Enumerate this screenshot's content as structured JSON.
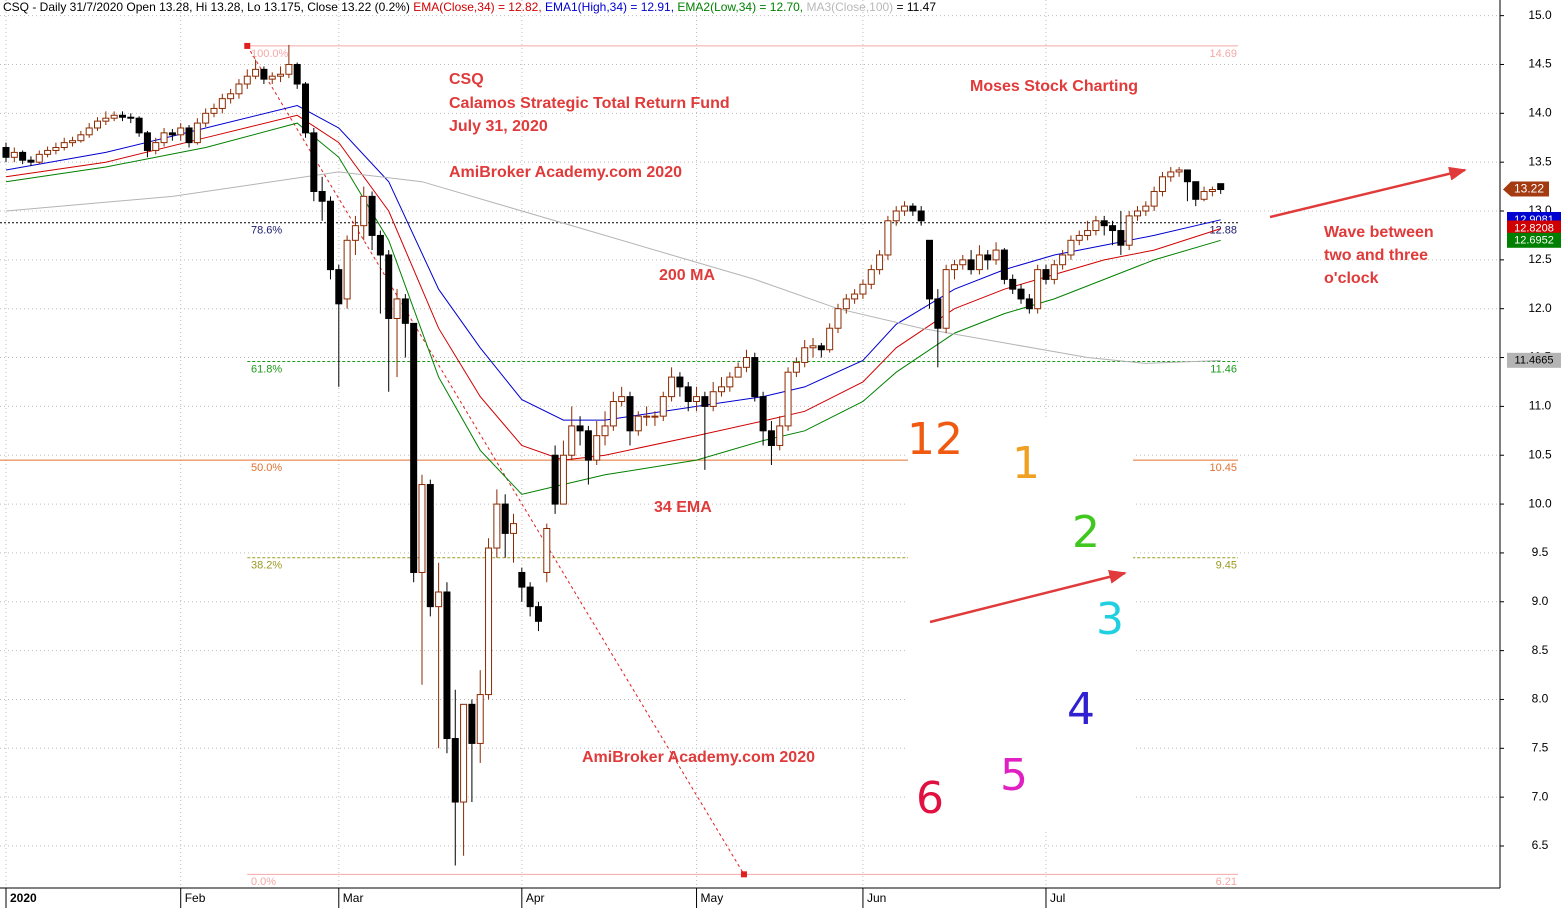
{
  "chart_data": {
    "type": "candlestick",
    "header": [
      {
        "text": "CSQ - Daily 31/7/2020 Open 13.28, Hi 13.28, Lo 13.175, Close 13.22 (0.2%) ",
        "color": "#000000"
      },
      {
        "text": "EMA(Close,34) = 12.82, ",
        "color": "#d00000"
      },
      {
        "text": "EMA1(High,34) = 12.91, ",
        "color": "#0000d0"
      },
      {
        "text": "EMA2(Low,34) = 12.70, ",
        "color": "#008000"
      },
      {
        "text": "MA3(Close,100)",
        "color": "#b8b8b8"
      },
      {
        "text": " = 11.47",
        "color": "#000000"
      }
    ],
    "open": [
      13.65,
      13.55,
      13.6,
      13.52,
      13.5,
      13.58,
      13.62,
      13.65,
      13.7,
      13.72,
      13.78,
      13.85,
      13.92,
      13.95,
      13.98,
      13.96,
      13.95,
      13.8,
      13.62,
      13.7,
      13.8,
      13.78,
      13.85,
      13.7,
      13.9,
      14.0,
      14.05,
      14.15,
      14.2,
      14.3,
      14.38,
      14.45,
      14.35,
      14.38,
      14.4,
      14.5,
      14.3,
      13.8,
      13.2,
      13.1,
      12.4,
      12.1,
      12.7,
      12.85,
      13.15,
      12.75,
      12.55,
      11.9,
      12.1,
      11.85,
      9.3,
      10.2,
      8.95,
      9.1,
      7.6,
      6.95,
      7.95,
      7.55,
      8.05,
      9.55,
      10.0,
      9.7,
      9.3,
      9.15,
      8.95,
      9.3,
      10.5,
      10.0,
      10.5,
      10.8,
      10.75,
      10.45,
      10.7,
      10.8,
      11.05,
      11.1,
      10.75,
      10.9,
      10.9,
      10.9,
      11.1,
      11.3,
      11.2,
      11.05,
      11.1,
      11.0,
      11.15,
      11.2,
      11.3,
      11.4,
      11.5,
      11.1,
      10.75,
      10.6,
      10.8,
      11.35,
      11.45,
      11.6,
      11.62,
      11.58,
      11.8,
      12.0,
      12.1,
      12.15,
      12.25,
      12.4,
      12.55,
      12.9,
      13.0,
      13.05,
      13.0,
      12.7,
      12.1,
      11.8,
      12.4,
      12.45,
      12.5,
      12.4,
      12.55,
      12.5,
      12.6,
      12.3,
      12.2,
      12.1,
      12.0,
      12.4,
      12.3,
      12.45,
      12.55,
      12.7,
      12.75,
      12.8,
      12.9,
      12.85,
      12.8,
      12.65,
      12.95,
      13.0,
      13.05,
      13.2,
      13.35,
      13.4,
      13.42,
      13.3,
      13.12,
      13.2,
      13.28
    ],
    "high": [
      13.7,
      13.65,
      13.62,
      13.56,
      13.62,
      13.66,
      13.7,
      13.75,
      13.76,
      13.82,
      13.9,
      13.96,
      14.02,
      14.02,
      14.02,
      14.0,
      13.97,
      13.82,
      13.75,
      13.85,
      13.84,
      13.9,
      13.88,
      13.95,
      14.05,
      14.1,
      14.2,
      14.25,
      14.35,
      14.45,
      14.55,
      14.48,
      14.42,
      14.48,
      14.7,
      14.52,
      14.32,
      13.85,
      13.35,
      13.15,
      12.45,
      12.75,
      12.95,
      13.25,
      13.2,
      12.8,
      12.6,
      12.2,
      12.15,
      11.85,
      10.3,
      10.25,
      9.4,
      9.2,
      8.1,
      7.95,
      8.0,
      8.3,
      9.65,
      10.15,
      10.1,
      9.9,
      9.35,
      9.2,
      9.0,
      9.8,
      10.6,
      10.65,
      11.0,
      10.9,
      10.8,
      10.85,
      10.95,
      11.15,
      11.2,
      11.15,
      10.95,
      11.0,
      10.95,
      11.15,
      11.4,
      11.35,
      11.25,
      11.2,
      11.15,
      11.25,
      11.3,
      11.35,
      11.45,
      11.58,
      11.55,
      11.15,
      10.85,
      10.9,
      11.4,
      11.5,
      11.68,
      11.7,
      11.65,
      11.85,
      12.05,
      12.15,
      12.2,
      12.3,
      12.45,
      12.6,
      12.95,
      13.05,
      13.1,
      13.08,
      13.05,
      12.7,
      12.2,
      12.45,
      12.5,
      12.55,
      12.6,
      12.65,
      12.6,
      12.68,
      12.62,
      12.35,
      12.25,
      12.15,
      12.45,
      12.45,
      12.5,
      12.6,
      12.75,
      12.8,
      12.9,
      12.95,
      12.95,
      12.9,
      13.0,
      13.0,
      13.05,
      13.1,
      13.25,
      13.4,
      13.45,
      13.45,
      13.42,
      13.3,
      13.25,
      13.25,
      13.28
    ],
    "low": [
      13.5,
      13.5,
      13.48,
      13.46,
      13.48,
      13.55,
      13.58,
      13.62,
      13.66,
      13.7,
      13.75,
      13.82,
      13.88,
      13.92,
      13.92,
      13.9,
      13.76,
      13.55,
      13.58,
      13.66,
      13.72,
      13.72,
      13.65,
      13.68,
      13.86,
      13.96,
      14.0,
      14.1,
      14.15,
      14.25,
      14.35,
      14.3,
      14.3,
      14.32,
      14.36,
      14.25,
      13.75,
      13.1,
      12.9,
      12.3,
      11.2,
      12.0,
      12.55,
      12.7,
      12.6,
      11.95,
      11.15,
      11.3,
      11.5,
      9.2,
      8.15,
      8.85,
      7.5,
      7.45,
      6.3,
      6.4,
      6.95,
      7.35,
      8.0,
      9.45,
      9.45,
      9.4,
      9.0,
      8.85,
      8.7,
      9.2,
      9.9,
      10.0,
      10.45,
      10.6,
      10.2,
      10.4,
      10.6,
      10.75,
      11.0,
      10.6,
      10.7,
      10.8,
      10.8,
      10.85,
      11.05,
      11.1,
      10.95,
      10.95,
      10.35,
      10.95,
      11.1,
      11.15,
      11.3,
      11.35,
      11.05,
      10.6,
      10.4,
      10.55,
      10.75,
      11.3,
      11.4,
      11.5,
      11.5,
      11.55,
      11.75,
      11.95,
      12.05,
      12.1,
      12.2,
      12.35,
      12.5,
      12.85,
      12.95,
      12.95,
      12.85,
      12.0,
      11.4,
      11.75,
      12.3,
      12.4,
      12.35,
      12.35,
      12.4,
      12.45,
      12.25,
      12.15,
      12.05,
      11.95,
      11.95,
      12.25,
      12.25,
      12.4,
      12.5,
      12.65,
      12.7,
      12.75,
      12.75,
      12.65,
      12.55,
      12.6,
      12.9,
      12.95,
      13.0,
      13.15,
      13.3,
      13.35,
      13.1,
      13.05,
      13.1,
      13.15,
      13.175
    ],
    "close": [
      13.55,
      13.6,
      13.52,
      13.5,
      13.58,
      13.62,
      13.65,
      13.7,
      13.72,
      13.78,
      13.85,
      13.92,
      13.95,
      13.98,
      13.96,
      13.95,
      13.8,
      13.62,
      13.7,
      13.8,
      13.78,
      13.85,
      13.7,
      13.9,
      14.0,
      14.05,
      14.15,
      14.2,
      14.3,
      14.38,
      14.45,
      14.35,
      14.38,
      14.4,
      14.5,
      14.3,
      13.8,
      13.2,
      13.1,
      12.4,
      12.05,
      12.7,
      12.85,
      13.15,
      12.75,
      12.55,
      11.9,
      12.1,
      11.85,
      9.3,
      10.2,
      8.95,
      9.1,
      7.6,
      6.95,
      7.95,
      7.55,
      8.05,
      9.55,
      10.0,
      9.7,
      9.8,
      9.15,
      8.95,
      8.8,
      9.75,
      10.0,
      10.5,
      10.8,
      10.75,
      10.45,
      10.7,
      10.8,
      11.05,
      11.1,
      10.75,
      10.9,
      10.9,
      10.9,
      11.1,
      11.3,
      11.2,
      11.05,
      11.1,
      11.0,
      11.15,
      11.2,
      11.3,
      11.4,
      11.5,
      11.1,
      10.75,
      10.6,
      10.8,
      11.35,
      11.45,
      11.6,
      11.62,
      11.58,
      11.8,
      12.0,
      12.1,
      12.15,
      12.25,
      12.4,
      12.55,
      12.9,
      13.0,
      13.05,
      13.0,
      12.9,
      12.1,
      11.8,
      12.4,
      12.45,
      12.5,
      12.4,
      12.55,
      12.5,
      12.6,
      12.3,
      12.2,
      12.1,
      12.0,
      12.4,
      12.3,
      12.45,
      12.55,
      12.7,
      12.75,
      12.8,
      12.9,
      12.85,
      12.8,
      12.65,
      12.95,
      13.0,
      13.05,
      13.2,
      13.35,
      13.4,
      13.42,
      13.3,
      13.12,
      13.2,
      13.22,
      13.22
    ],
    "up_color": "#8b2a00",
    "down_color": "#000000",
    "last_color": "#a33a10",
    "lines": [
      {
        "color": "#0000d0",
        "x": [
          0,
          12,
          24,
          35,
          40,
          46,
          52,
          57,
          62,
          67,
          72,
          83,
          91,
          96,
          103,
          107,
          114,
          120,
          126,
          132,
          138,
          146
        ],
        "values": [
          13.42,
          13.6,
          13.85,
          14.08,
          13.85,
          13.3,
          12.2,
          11.6,
          11.07,
          10.86,
          10.86,
          11.0,
          11.1,
          11.2,
          11.47,
          11.84,
          12.2,
          12.4,
          12.55,
          12.65,
          12.75,
          12.91
        ],
        "last_value": 12.9081
      },
      {
        "color": "#d00000",
        "x": [
          0,
          12,
          24,
          35,
          40,
          46,
          52,
          57,
          62,
          67,
          72,
          83,
          91,
          96,
          103,
          107,
          114,
          120,
          126,
          132,
          138,
          146
        ],
        "values": [
          13.35,
          13.5,
          13.75,
          13.98,
          13.7,
          13.0,
          11.8,
          11.1,
          10.6,
          10.45,
          10.5,
          10.7,
          10.85,
          10.95,
          11.25,
          11.6,
          12.0,
          12.2,
          12.35,
          12.5,
          12.6,
          12.82
        ],
        "last_value": 12.8208
      },
      {
        "color": "#008000",
        "x": [
          0,
          12,
          24,
          35,
          40,
          46,
          52,
          57,
          62,
          67,
          72,
          83,
          91,
          96,
          103,
          107,
          114,
          120,
          126,
          132,
          138,
          146
        ],
        "values": [
          13.3,
          13.45,
          13.65,
          13.9,
          13.55,
          12.7,
          11.3,
          10.55,
          10.1,
          10.2,
          10.3,
          10.45,
          10.65,
          10.75,
          11.05,
          11.35,
          11.75,
          11.95,
          12.1,
          12.3,
          12.5,
          12.7
        ],
        "last_value": 12.6952
      },
      {
        "color": "#b4b4b4",
        "x": [
          0,
          20,
          40,
          50,
          60,
          70,
          80,
          90,
          100,
          110,
          120,
          130,
          137,
          146
        ],
        "values": [
          13.0,
          13.15,
          13.4,
          13.3,
          13.05,
          12.8,
          12.55,
          12.3,
          12.0,
          11.8,
          11.65,
          11.5,
          11.44,
          11.47
        ],
        "last_value": 11.4665
      }
    ],
    "fib": [
      {
        "label": "100.0%",
        "value": 14.69,
        "color": "#f4a8a8"
      },
      {
        "label": "78.6%",
        "value": 12.88,
        "color": "#1a1a6e"
      },
      {
        "label": "61.8%",
        "value": 11.46,
        "color": "#1a9a1a"
      },
      {
        "label": "50.0%",
        "value": 10.45,
        "color": "#e07030"
      },
      {
        "label": "38.2%",
        "value": 9.45,
        "color": "#9a9a20"
      },
      {
        "label": "0.0%",
        "value": 6.21,
        "color": "#f4a8a8"
      }
    ],
    "trendline": {
      "x": [
        29,
        88.7
      ],
      "values": [
        14.69,
        6.21
      ],
      "color": "#e02020"
    },
    "xlim": [
      -0.72,
      179.57
    ],
    "ylim": [
      6.07,
      15.16
    ],
    "xticks": [
      {
        "value": 0,
        "label": "2020"
      },
      {
        "value": 21,
        "label": "Feb"
      },
      {
        "value": 40,
        "label": "Mar"
      },
      {
        "value": 62,
        "label": "Apr"
      },
      {
        "value": 83,
        "label": "May"
      },
      {
        "value": 103,
        "label": "Jun"
      },
      {
        "value": 125,
        "label": "Jul"
      }
    ],
    "yticks": [
      {
        "value": 15,
        "label": "15.0"
      },
      14.5,
      {
        "value": 14,
        "label": "14.0"
      },
      13.5,
      {
        "value": 13,
        "label": "13.0"
      },
      12.5,
      {
        "value": 12,
        "label": "12.0"
      },
      11.5,
      {
        "value": 11,
        "label": "11.0"
      },
      10.5,
      {
        "value": 10,
        "label": "10.0"
      },
      9.5,
      {
        "value": 9,
        "label": "9.0"
      },
      8.5,
      {
        "value": 8,
        "label": "8.0"
      },
      7.5,
      {
        "value": 7,
        "label": "7.0"
      },
      6.5
    ],
    "grid": true,
    "annotations": [
      "CSQ",
      "Calamos Strategic Total Return Fund",
      "July 31, 2020",
      "AmiBroker Academy.com  2020",
      "Moses Stock Charting",
      "200 MA",
      "34 EMA",
      "AmiBroker Academy.com  2020",
      "Wave between",
      "two and three",
      "o'clock"
    ],
    "clock": [
      {
        "text": "12",
        "color": "#f05a10"
      },
      {
        "text": "1",
        "color": "#f0a020"
      },
      {
        "text": "2",
        "color": "#40c820"
      },
      {
        "text": "3",
        "color": "#20d0e0"
      },
      {
        "text": "4",
        "color": "#3020d0"
      },
      {
        "text": "5",
        "color": "#e020c0"
      },
      {
        "text": "6",
        "color": "#e01040"
      }
    ]
  }
}
